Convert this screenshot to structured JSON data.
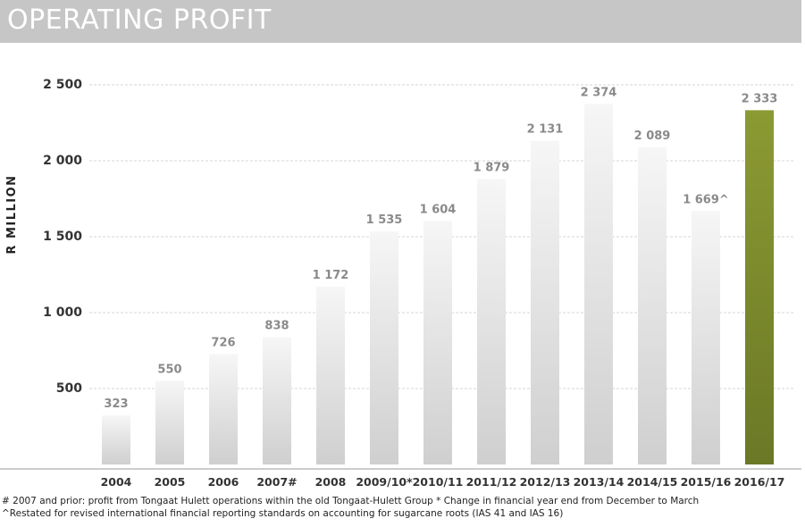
{
  "title": "OPERATING PROFIT",
  "colors": {
    "title_bar": "#c6c6c6",
    "bar_light_top": "#f6f6f6",
    "bar_light_bottom": "#cfcfcf",
    "bar_highlight_top": "#8c9a33",
    "bar_highlight_bottom": "#6b7826",
    "value_label": "#8a8a8a",
    "axis_text": "#333333"
  },
  "footnotes": {
    "line1": "# 2007 and prior: profit from Tongaat Hulett operations within the old Tongaat-Hulett Group   * Change in financial year end from December to March",
    "line2": "^Restated for revised international financial reporting standards on accounting for sugarcane roots (IAS 41 and IAS 16)"
  },
  "chart_data": {
    "type": "bar",
    "title": "OPERATING PROFIT",
    "ylabel": "R MILLION",
    "xlabel": "",
    "ylim": [
      0,
      2500
    ],
    "yticks": [
      500,
      1000,
      1500,
      2000,
      2500
    ],
    "ytick_labels": [
      "500",
      "1 000",
      "1 500",
      "2 000",
      "2 500"
    ],
    "grid": "horizontal dashed",
    "categories": [
      "2004",
      "2005",
      "2006",
      "2007#",
      "2008",
      "2009/10*",
      "2010/11",
      "2011/12",
      "2012/13",
      "2013/14",
      "2014/15",
      "2015/16",
      "2016/17"
    ],
    "values": [
      323,
      550,
      726,
      838,
      1172,
      1535,
      1604,
      1879,
      2131,
      2374,
      2089,
      1669,
      2333
    ],
    "value_labels": [
      "323",
      "550",
      "726",
      "838",
      "1 172",
      "1 535",
      "1 604",
      "1 879",
      "2 131",
      "2 374",
      "2 089",
      "1 669^",
      "2 333"
    ],
    "highlight_index": 12
  }
}
